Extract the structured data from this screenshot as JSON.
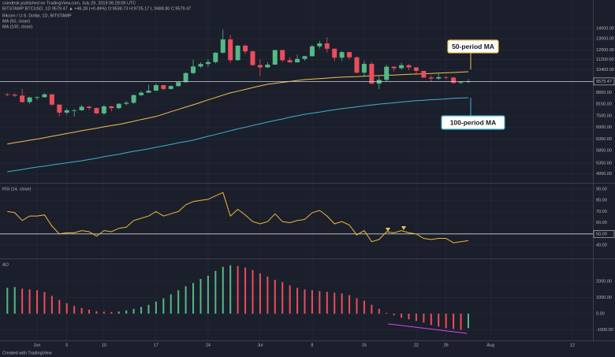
{
  "chart_data": {
    "type": "candlestick",
    "publisher_line": "coindesk published on TradingView.com, July 29, 2019 06:28:09 UTC",
    "symbol_line": "BITSTAMP:BTCUSD, 1D  9579.47 ▲ +46.28 (+0.49%) O:9538.73 H:9725.17 L:9488.80 C:9579.47",
    "title": "Bitcoin / U.S. Dollar, 1D, BITSTAMP",
    "footer": "Created with TradingView",
    "grid": true,
    "log_scale": true,
    "ylim": [
      4700,
      14800
    ],
    "yticks": [
      {
        "value": 14000,
        "label": "14000.00"
      },
      {
        "value": 13000,
        "label": "13000.00"
      },
      {
        "value": 12000,
        "label": "12000.00"
      },
      {
        "value": 11200,
        "label": "11200.00"
      },
      {
        "value": 10400,
        "label": "10400.00"
      },
      {
        "value": 8850,
        "label": "8850.00"
      },
      {
        "value": 8150,
        "label": "8150.00"
      },
      {
        "value": 7500,
        "label": "7500.00"
      },
      {
        "value": 6900,
        "label": "6900.00"
      },
      {
        "value": 6350,
        "label": "6350.00"
      },
      {
        "value": 5850,
        "label": "5850.00"
      },
      {
        "value": 5350,
        "label": "5350.00"
      },
      {
        "value": 4950,
        "label": "4950.00"
      }
    ],
    "last_price": 9579.47,
    "categories": [
      null,
      null,
      null,
      null,
      "Jun",
      null,
      null,
      null,
      "5",
      null,
      null,
      null,
      null,
      "10",
      null,
      null,
      null,
      null,
      null,
      null,
      "17",
      null,
      null,
      null,
      null,
      null,
      null,
      "24",
      null,
      null,
      null,
      null,
      null,
      null,
      "Jul",
      null,
      null,
      null,
      null,
      null,
      null,
      "8",
      null,
      null,
      null,
      null,
      null,
      null,
      "15",
      null,
      null,
      null,
      null,
      null,
      null,
      "22",
      null,
      null,
      null,
      "26",
      null,
      null,
      null,
      null,
      null,
      "Aug",
      null,
      null,
      null,
      null,
      null,
      null,
      null,
      null,
      null,
      null,
      "12",
      null,
      null
    ],
    "series": [
      {
        "name": "Bitcoin / U.S. Dollar, 1D, BITSTAMP",
        "type": "candlestick",
        "colors": {
          "up": "#53b987",
          "down": "#eb4d5c"
        },
        "open": [
          8740,
          8720,
          8660,
          8270,
          8550,
          8560,
          8740,
          8120,
          7670,
          7800,
          7800,
          8000,
          7930,
          7630,
          8020,
          7920,
          8170,
          8230,
          8690,
          8840,
          8970,
          9330,
          9080,
          9270,
          9530,
          10170,
          10660,
          10850,
          11000,
          11760,
          12930,
          11150,
          12370,
          11870,
          10770,
          10590,
          10800,
          11980,
          11150,
          10980,
          11250,
          11470,
          12310,
          12570,
          12100,
          11350,
          11810,
          11380,
          10200,
          10860,
          9430,
          9690,
          10640,
          10530,
          10760,
          10590,
          10330,
          9850,
          9780,
          9880,
          9850,
          9480,
          9538.73,
          null,
          null,
          null,
          null,
          null,
          null,
          null,
          null,
          null,
          null,
          null,
          null,
          null,
          null,
          null,
          null
        ],
        "high": [
          8810,
          8800,
          9080,
          8590,
          8630,
          8800,
          8750,
          8130,
          7900,
          7880,
          8100,
          8070,
          7950,
          8090,
          8060,
          8210,
          8330,
          8730,
          8950,
          9350,
          9440,
          9340,
          9320,
          9580,
          10220,
          11200,
          10990,
          11230,
          11800,
          13880,
          13350,
          12400,
          12450,
          11950,
          11200,
          11000,
          12000,
          12000,
          11390,
          11600,
          11500,
          12450,
          12800,
          13130,
          12100,
          11900,
          11830,
          11450,
          11080,
          11000,
          9980,
          10800,
          10700,
          10950,
          10840,
          10600,
          10330,
          10000,
          10200,
          9950,
          9900,
          9600,
          9725.17,
          null,
          null,
          null,
          null,
          null,
          null,
          null,
          null,
          null,
          null,
          null,
          null,
          null,
          null,
          null,
          null
        ],
        "low": [
          8620,
          8560,
          8240,
          8170,
          8400,
          8540,
          8060,
          7480,
          7560,
          7460,
          7770,
          7820,
          7600,
          7540,
          7740,
          7850,
          8080,
          8170,
          8620,
          8830,
          8950,
          9000,
          9030,
          9220,
          9500,
          10100,
          10550,
          10620,
          10900,
          11700,
          10950,
          11100,
          11650,
          10730,
          9950,
          10550,
          10780,
          11000,
          10950,
          10960,
          11100,
          11440,
          12120,
          11780,
          11080,
          11100,
          11200,
          10150,
          9880,
          9400,
          9070,
          9590,
          10280,
          10430,
          10380,
          10120,
          9820,
          9580,
          9700,
          9720,
          9420,
          9420,
          9488.8,
          null,
          null,
          null,
          null,
          null,
          null,
          null,
          null,
          null,
          null,
          null,
          null,
          null,
          null,
          null,
          null
        ],
        "close": [
          8720,
          8660,
          8270,
          8550,
          8560,
          8740,
          8120,
          7670,
          7800,
          7800,
          8000,
          7930,
          7630,
          8020,
          7920,
          8170,
          8230,
          8690,
          8840,
          8970,
          9330,
          9080,
          9270,
          9530,
          10170,
          10660,
          10850,
          11000,
          11760,
          12930,
          11150,
          12370,
          11870,
          10770,
          10590,
          10800,
          11980,
          11150,
          10980,
          11250,
          11470,
          12310,
          12570,
          12100,
          11350,
          11810,
          11380,
          10200,
          10860,
          9430,
          9690,
          10640,
          10530,
          10760,
          10590,
          10330,
          9850,
          9780,
          9880,
          9850,
          9480,
          9530,
          9579.47,
          null,
          null,
          null,
          null,
          null,
          null,
          null,
          null,
          null,
          null,
          null,
          null,
          null,
          null,
          null,
          null
        ]
      },
      {
        "name": "MA (50, close)",
        "type": "line",
        "color": "#f2c14e",
        "values": [
          6130,
          6190,
          6240,
          6300,
          6350,
          6410,
          6480,
          6540,
          6610,
          6670,
          6740,
          6800,
          6860,
          6930,
          6990,
          7050,
          7130,
          7210,
          7300,
          7380,
          7460,
          7590,
          7720,
          7850,
          7980,
          8110,
          8250,
          8400,
          8540,
          8690,
          8830,
          8940,
          9050,
          9170,
          9280,
          9390,
          9450,
          9520,
          9580,
          9650,
          9710,
          9740,
          9780,
          9810,
          9850,
          9880,
          9900,
          9920,
          9950,
          9970,
          9990,
          10010,
          10030,
          10060,
          10080,
          10100,
          10120,
          10140,
          10170,
          10190,
          10210,
          10240,
          10270,
          null,
          null,
          null,
          null,
          null,
          null,
          null,
          null,
          null,
          null,
          null,
          null,
          null,
          null,
          null,
          null
        ]
      },
      {
        "name": "MA (100, close)",
        "type": "line",
        "color": "#3fb1c9",
        "values": [
          5030,
          5070,
          5110,
          5160,
          5200,
          5240,
          5280,
          5320,
          5360,
          5400,
          5440,
          5490,
          5540,
          5600,
          5650,
          5700,
          5760,
          5820,
          5870,
          5930,
          5990,
          6050,
          6110,
          6180,
          6240,
          6300,
          6390,
          6480,
          6560,
          6650,
          6740,
          6830,
          6910,
          7000,
          7080,
          7170,
          7250,
          7330,
          7420,
          7500,
          7580,
          7640,
          7700,
          7770,
          7830,
          7890,
          7940,
          7990,
          8050,
          8100,
          8150,
          8190,
          8230,
          8270,
          8310,
          8350,
          8380,
          8410,
          8430,
          8460,
          8490,
          8510,
          8530,
          null,
          null,
          null,
          null,
          null,
          null,
          null,
          null,
          null,
          null,
          null,
          null,
          null,
          null,
          null,
          null
        ]
      }
    ],
    "annotations": [
      {
        "text": "50-period MA",
        "color": "#f2c14e"
      },
      {
        "text": "100-period MA",
        "color": "#3fb1c9"
      }
    ],
    "indicators": [
      {
        "name": "RSI (14, close)",
        "type": "line",
        "color": "#f0b73a",
        "ylim": [
          28,
          95
        ],
        "yticks": [
          {
            "value": 90,
            "label": "90.00"
          },
          {
            "value": 80,
            "label": "80.00"
          },
          {
            "value": 70,
            "label": "70.00"
          },
          {
            "value": 60,
            "label": "60.00"
          },
          {
            "value": 40,
            "label": "40.00"
          }
        ],
        "reference_line": {
          "value": 50,
          "label": "50.00"
        },
        "values": [
          70,
          69,
          62,
          66,
          66,
          67,
          57,
          50,
          51,
          51,
          53,
          52,
          48,
          53,
          52,
          55,
          56,
          62,
          64,
          66,
          70,
          66,
          68,
          70,
          76,
          79,
          80,
          81,
          84,
          87,
          66,
          72,
          67,
          61,
          59,
          61,
          68,
          61,
          60,
          62,
          63,
          69,
          71,
          66,
          59,
          61,
          58,
          49,
          53,
          43,
          45,
          52,
          51,
          53,
          51,
          50,
          46,
          45,
          46,
          46,
          42,
          43,
          44,
          null,
          null,
          null,
          null,
          null,
          null,
          null,
          null,
          null,
          null,
          null,
          null,
          null,
          null,
          null,
          null
        ]
      },
      {
        "name": "AO",
        "type": "bar",
        "colors": {
          "up": "#53b987",
          "down": "#eb4d5c"
        },
        "ylim": [
          -1660,
          3370
        ],
        "yticks": [
          {
            "value": 2000,
            "label": "2000.00"
          },
          {
            "value": 1000,
            "label": "1000.00"
          },
          {
            "value": 0,
            "label": "0.00"
          },
          {
            "value": -1000,
            "label": "-1000.00"
          }
        ],
        "values": [
          1600,
          1650,
          1550,
          1500,
          1450,
          1350,
          1100,
          850,
          650,
          480,
          350,
          250,
          150,
          120,
          100,
          130,
          200,
          300,
          420,
          550,
          750,
          950,
          1200,
          1450,
          1700,
          1900,
          2150,
          2350,
          2650,
          2900,
          3000,
          2950,
          2850,
          2700,
          2500,
          2300,
          2100,
          1950,
          1750,
          1600,
          1500,
          1450,
          1400,
          1350,
          1300,
          1250,
          1150,
          950,
          800,
          550,
          300,
          50,
          -100,
          -250,
          -350,
          -450,
          -550,
          -700,
          -800,
          -900,
          -950,
          -1000,
          -900,
          null,
          null,
          null,
          null,
          null,
          null,
          null,
          null,
          null,
          null,
          null,
          null,
          null,
          null,
          null,
          null
        ]
      }
    ]
  }
}
